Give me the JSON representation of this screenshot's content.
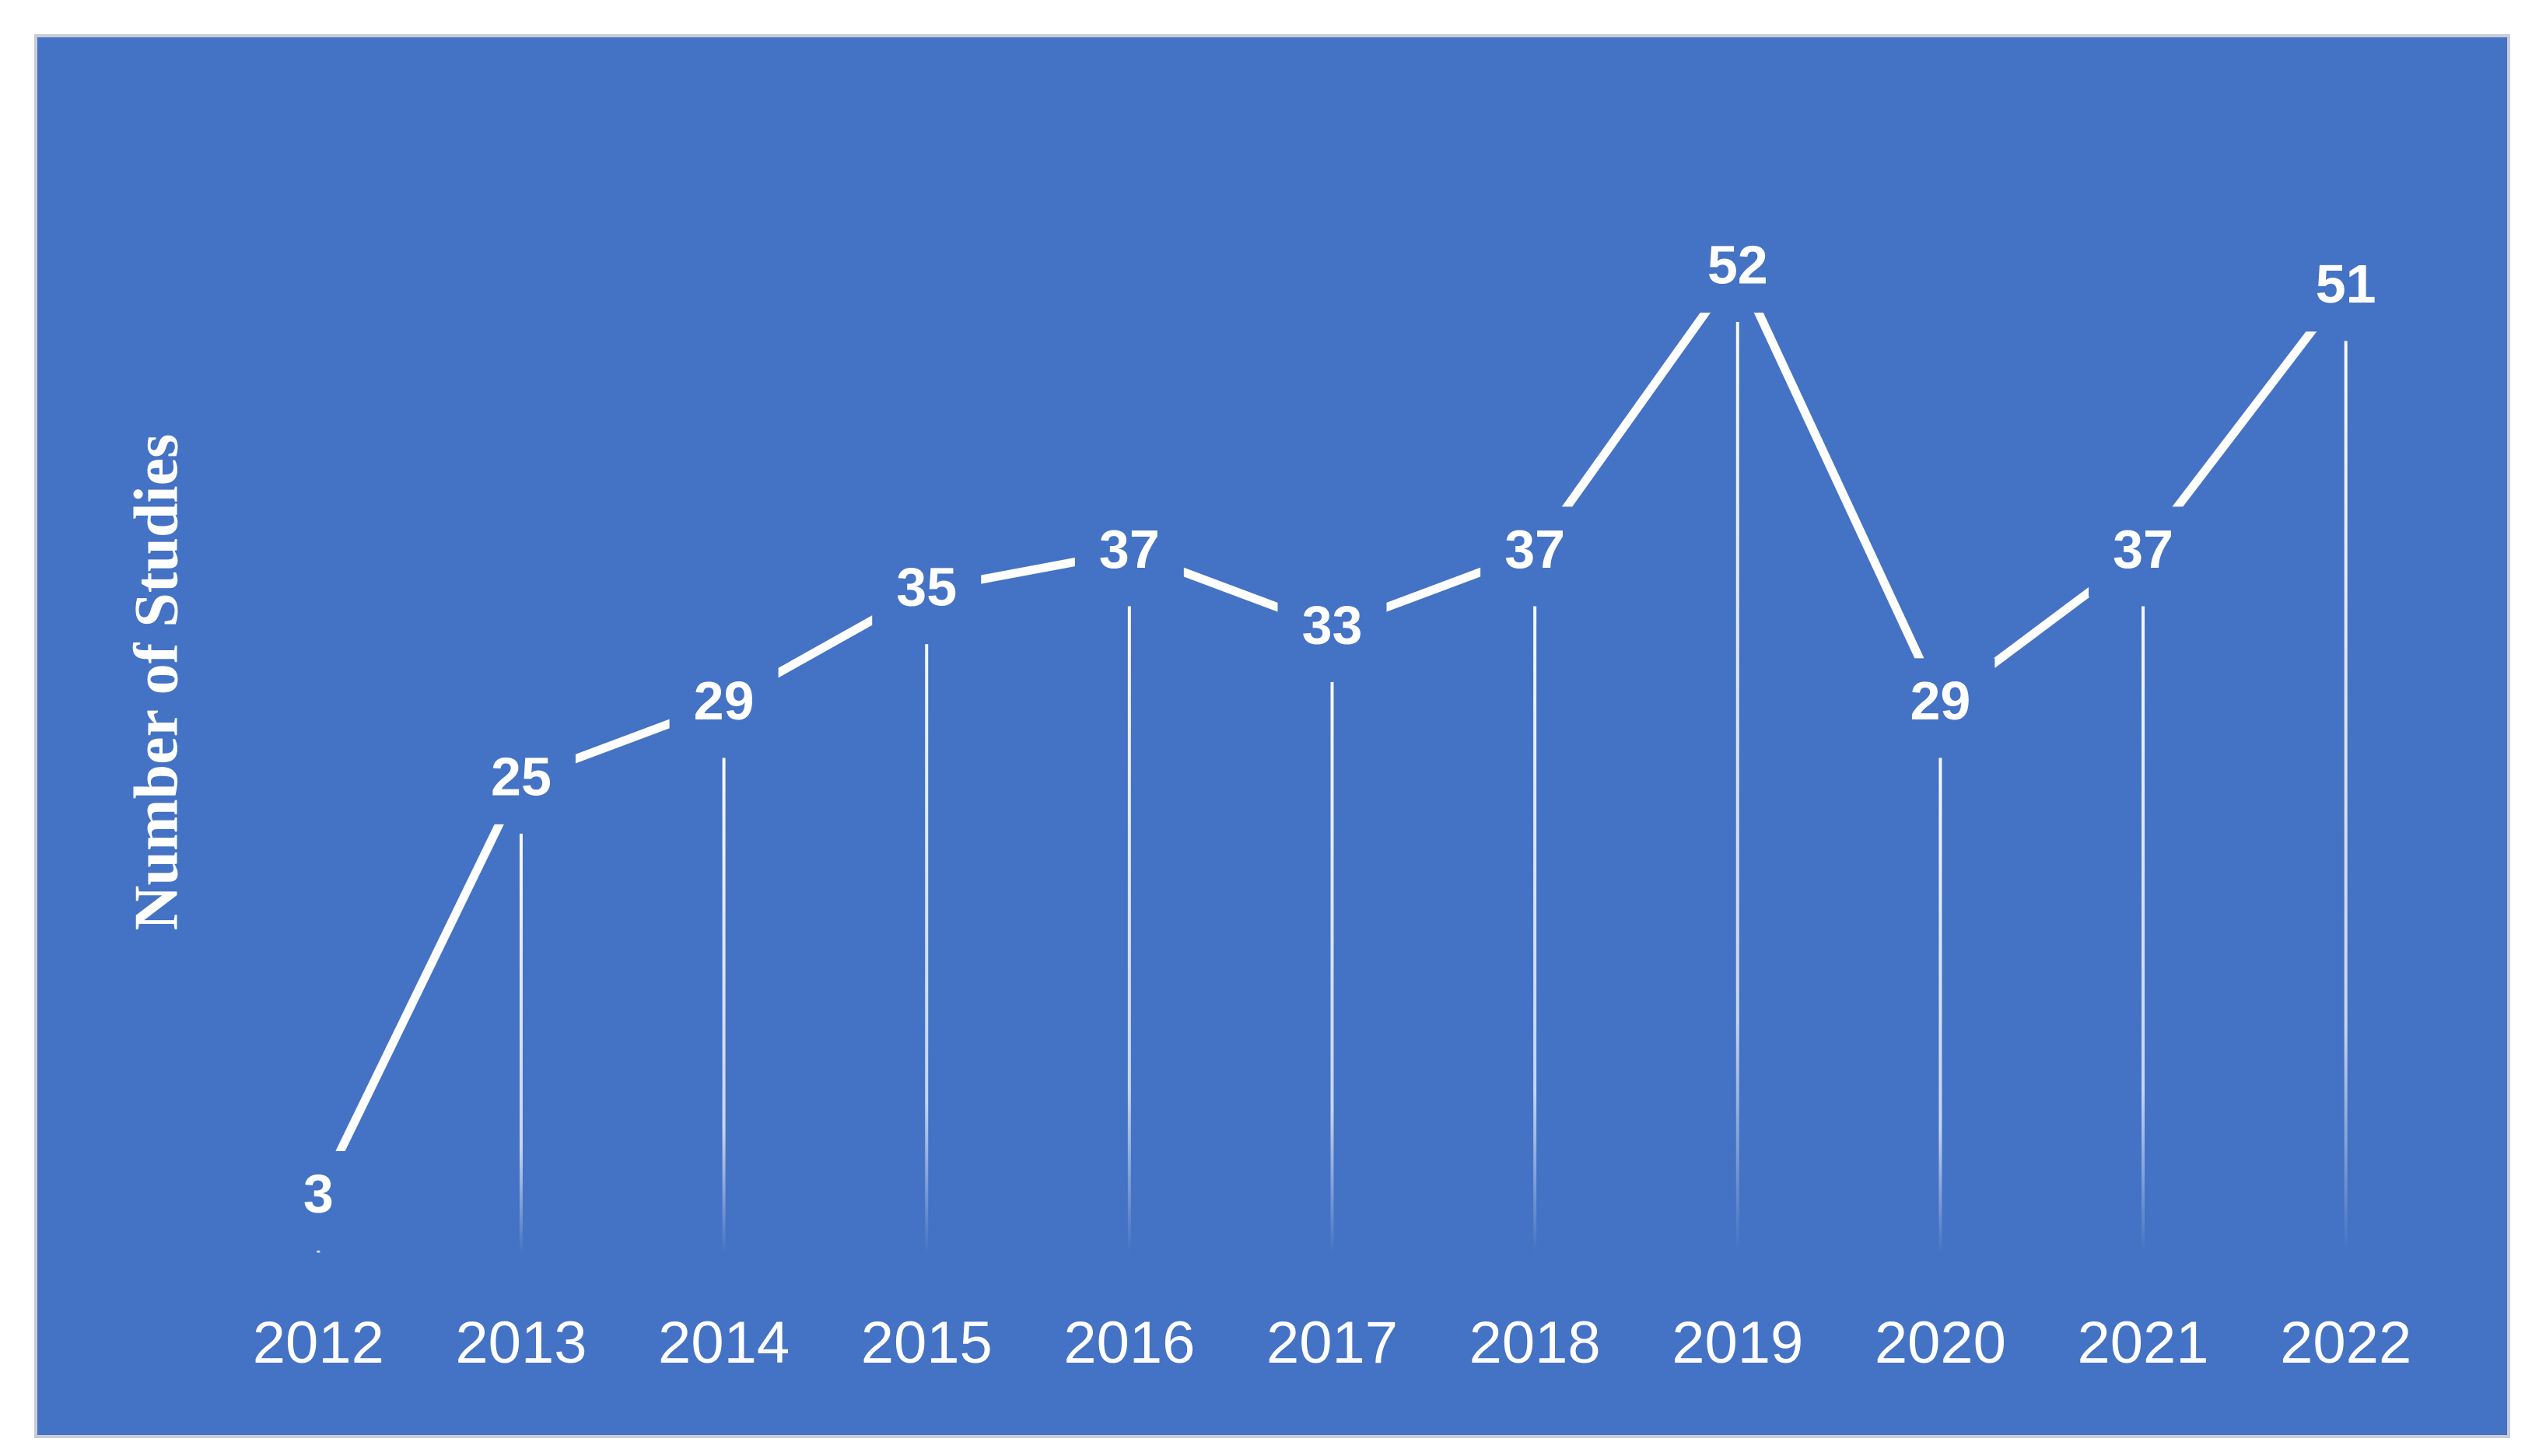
{
  "chart_data": {
    "type": "line",
    "y_label": "Number of Studies",
    "categories": [
      "2012",
      "2013",
      "2014",
      "2015",
      "2016",
      "2017",
      "2018",
      "2019",
      "2020",
      "2021",
      "2022"
    ],
    "values": [
      3,
      25,
      29,
      35,
      37,
      33,
      37,
      52,
      29,
      37,
      51
    ],
    "color": "#ffffff",
    "background": "#4472c4",
    "ylim": [
      0,
      60
    ],
    "data_labels": true,
    "drop_lines": true
  }
}
